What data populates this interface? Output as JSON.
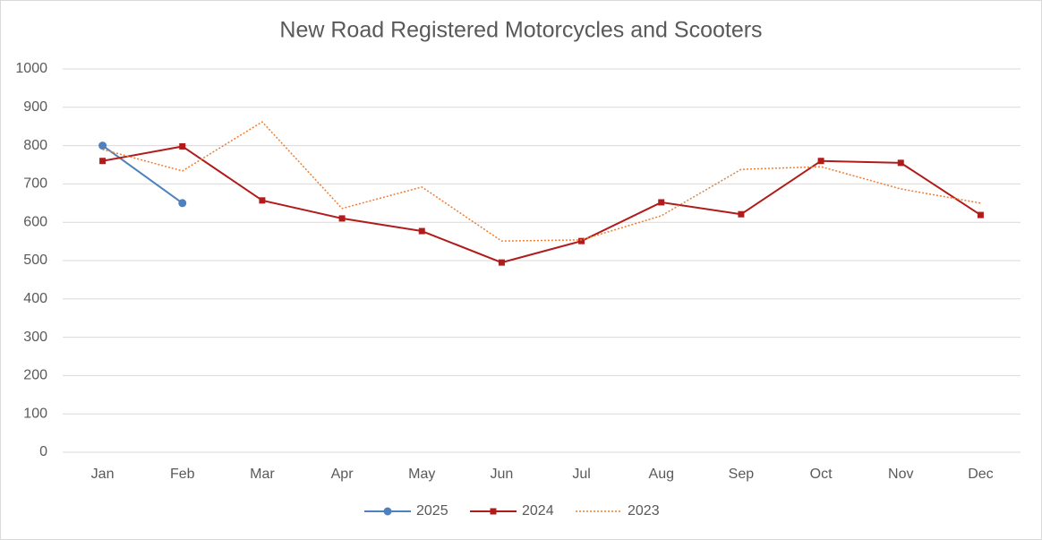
{
  "chart_data": {
    "type": "line",
    "title": "New Road Registered Motorcycles and Scooters",
    "categories": [
      "Jan",
      "Feb",
      "Mar",
      "Apr",
      "May",
      "Jun",
      "Jul",
      "Aug",
      "Sep",
      "Oct",
      "Nov",
      "Dec"
    ],
    "series": [
      {
        "name": "2025",
        "color": "#4e81bd",
        "marker": "circle",
        "dash": "solid",
        "values": [
          800,
          650,
          null,
          null,
          null,
          null,
          null,
          null,
          null,
          null,
          null,
          null
        ]
      },
      {
        "name": "2024",
        "color": "#b01c1c",
        "marker": "square",
        "dash": "solid",
        "values": [
          760,
          798,
          657,
          610,
          577,
          495,
          551,
          652,
          621,
          760,
          755,
          619
        ]
      },
      {
        "name": "2023",
        "color": "#ed7d31",
        "marker": "none",
        "dash": "dotted",
        "values": [
          790,
          734,
          862,
          636,
          692,
          551,
          554,
          617,
          738,
          745,
          687,
          650
        ]
      }
    ],
    "ylim": [
      0,
      1000
    ],
    "yticks": [
      0,
      100,
      200,
      300,
      400,
      500,
      600,
      700,
      800,
      900,
      1000
    ],
    "grid": true,
    "legend": "bottom"
  }
}
